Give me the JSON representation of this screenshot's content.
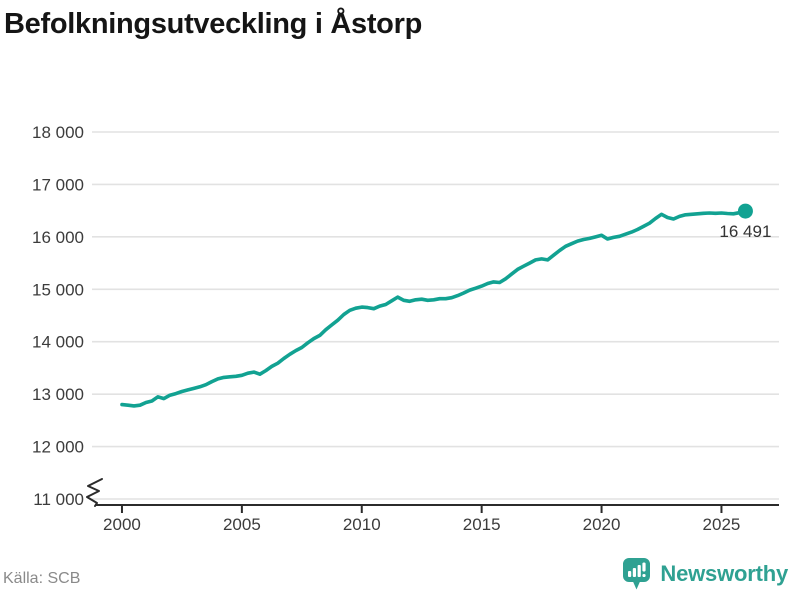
{
  "title": "Befolkningsutveckling i Åstorp",
  "source": "Källa: SCB",
  "branding": {
    "name": "Newsworthy",
    "icon": "bar-chart-speech-bubble-icon"
  },
  "colors": {
    "line": "#12A292",
    "end_dot": "#12A292",
    "brand_teal": "#2FA192",
    "grid": "#E2E2E2",
    "axis": "#2B2B2B",
    "tick_label": "#3C3C3C",
    "end_label": "#333333",
    "title": "#151515",
    "source_text": "#8A8A8A"
  },
  "chart_data": {
    "type": "line",
    "title": "Befolkningsutveckling i Åstorp",
    "xlabel": "",
    "ylabel": "",
    "legend": "none",
    "grid": "horizontal",
    "axis_break_at_bottom_left": true,
    "xlim": [
      1998.75,
      2027.4
    ],
    "ylim": [
      11000,
      18000
    ],
    "x_ticks": [
      2000,
      2005,
      2010,
      2015,
      2020,
      2025
    ],
    "x_tick_labels": [
      "2000",
      "2005",
      "2010",
      "2015",
      "2020",
      "2025"
    ],
    "y_ticks": [
      11000,
      12000,
      13000,
      14000,
      15000,
      16000,
      17000,
      18000
    ],
    "y_tick_labels": [
      "11 000",
      "12 000",
      "13 000",
      "14 000",
      "15 000",
      "16 000",
      "17 000",
      "18 000"
    ],
    "end_value": 16491,
    "end_label": "16 491",
    "series": [
      {
        "name": "Befolkning",
        "points": [
          [
            2000.0,
            12800
          ],
          [
            2000.25,
            12790
          ],
          [
            2000.5,
            12775
          ],
          [
            2000.75,
            12790
          ],
          [
            2001.0,
            12840
          ],
          [
            2001.25,
            12870
          ],
          [
            2001.5,
            12950
          ],
          [
            2001.75,
            12915
          ],
          [
            2002.0,
            12980
          ],
          [
            2002.25,
            13010
          ],
          [
            2002.5,
            13050
          ],
          [
            2002.75,
            13080
          ],
          [
            2003.0,
            13110
          ],
          [
            2003.25,
            13140
          ],
          [
            2003.5,
            13180
          ],
          [
            2003.75,
            13240
          ],
          [
            2004.0,
            13290
          ],
          [
            2004.25,
            13320
          ],
          [
            2004.5,
            13330
          ],
          [
            2004.75,
            13340
          ],
          [
            2005.0,
            13360
          ],
          [
            2005.25,
            13400
          ],
          [
            2005.5,
            13420
          ],
          [
            2005.75,
            13380
          ],
          [
            2006.0,
            13450
          ],
          [
            2006.25,
            13530
          ],
          [
            2006.5,
            13590
          ],
          [
            2006.75,
            13680
          ],
          [
            2007.0,
            13760
          ],
          [
            2007.25,
            13830
          ],
          [
            2007.5,
            13890
          ],
          [
            2007.75,
            13980
          ],
          [
            2008.0,
            14060
          ],
          [
            2008.25,
            14120
          ],
          [
            2008.5,
            14230
          ],
          [
            2008.75,
            14320
          ],
          [
            2009.0,
            14410
          ],
          [
            2009.25,
            14520
          ],
          [
            2009.5,
            14600
          ],
          [
            2009.75,
            14640
          ],
          [
            2010.0,
            14660
          ],
          [
            2010.25,
            14650
          ],
          [
            2010.5,
            14630
          ],
          [
            2010.75,
            14680
          ],
          [
            2011.0,
            14710
          ],
          [
            2011.25,
            14780
          ],
          [
            2011.5,
            14850
          ],
          [
            2011.75,
            14790
          ],
          [
            2012.0,
            14770
          ],
          [
            2012.25,
            14800
          ],
          [
            2012.5,
            14810
          ],
          [
            2012.75,
            14790
          ],
          [
            2013.0,
            14800
          ],
          [
            2013.25,
            14820
          ],
          [
            2013.5,
            14820
          ],
          [
            2013.75,
            14840
          ],
          [
            2014.0,
            14880
          ],
          [
            2014.25,
            14930
          ],
          [
            2014.5,
            14985
          ],
          [
            2014.75,
            15020
          ],
          [
            2015.0,
            15060
          ],
          [
            2015.25,
            15110
          ],
          [
            2015.5,
            15140
          ],
          [
            2015.75,
            15130
          ],
          [
            2016.0,
            15200
          ],
          [
            2016.25,
            15290
          ],
          [
            2016.5,
            15380
          ],
          [
            2016.75,
            15440
          ],
          [
            2017.0,
            15500
          ],
          [
            2017.25,
            15560
          ],
          [
            2017.5,
            15580
          ],
          [
            2017.75,
            15560
          ],
          [
            2018.0,
            15650
          ],
          [
            2018.25,
            15740
          ],
          [
            2018.5,
            15820
          ],
          [
            2018.75,
            15870
          ],
          [
            2019.0,
            15920
          ],
          [
            2019.25,
            15950
          ],
          [
            2019.5,
            15970
          ],
          [
            2019.75,
            16000
          ],
          [
            2020.0,
            16030
          ],
          [
            2020.25,
            15960
          ],
          [
            2020.5,
            15990
          ],
          [
            2020.75,
            16010
          ],
          [
            2021.0,
            16050
          ],
          [
            2021.25,
            16090
          ],
          [
            2021.5,
            16140
          ],
          [
            2021.75,
            16200
          ],
          [
            2022.0,
            16260
          ],
          [
            2022.25,
            16350
          ],
          [
            2022.5,
            16430
          ],
          [
            2022.75,
            16370
          ],
          [
            2023.0,
            16340
          ],
          [
            2023.25,
            16390
          ],
          [
            2023.5,
            16420
          ],
          [
            2023.75,
            16430
          ],
          [
            2024.0,
            16440
          ],
          [
            2024.25,
            16450
          ],
          [
            2024.5,
            16455
          ],
          [
            2024.75,
            16450
          ],
          [
            2025.0,
            16455
          ],
          [
            2025.25,
            16445
          ],
          [
            2025.5,
            16440
          ],
          [
            2025.75,
            16460
          ],
          [
            2026.0,
            16491
          ]
        ]
      }
    ]
  }
}
